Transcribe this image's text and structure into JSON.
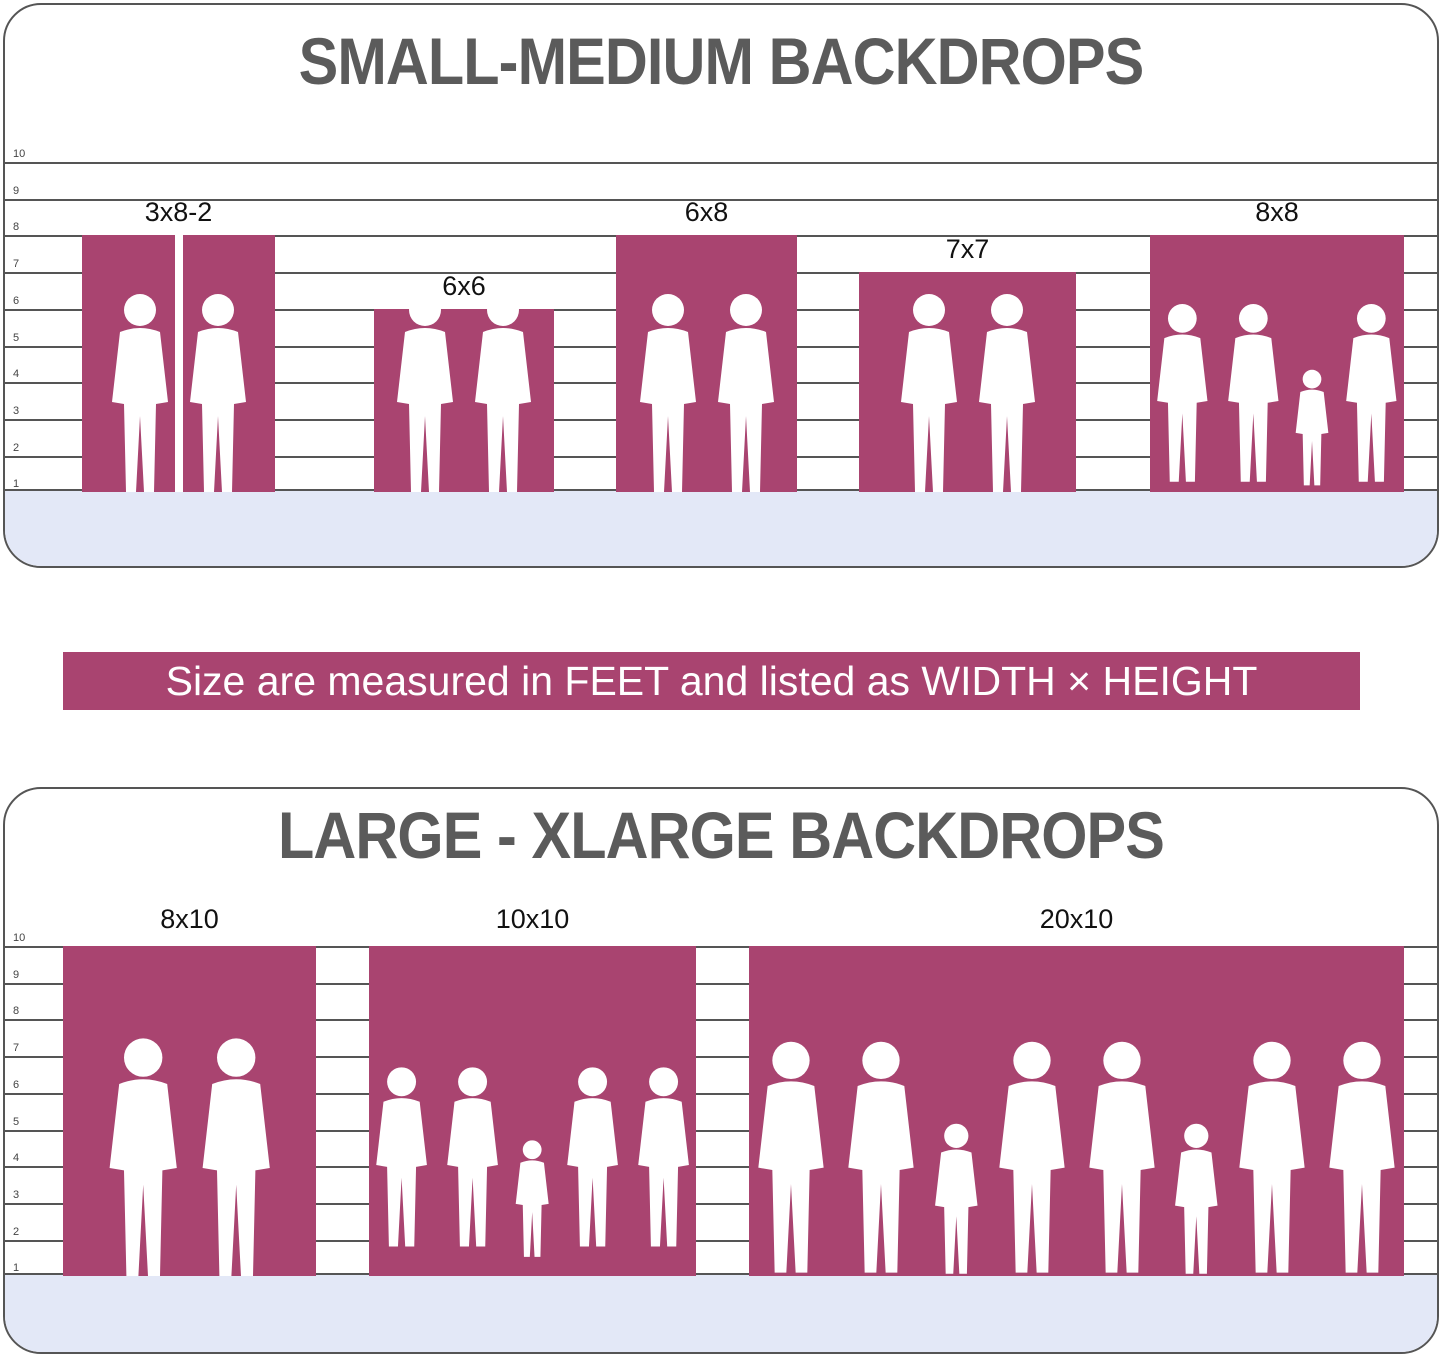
{
  "colors": {
    "backdrop": "#a94470",
    "floor": "#e3e8f7",
    "title": "#5b5b5b"
  },
  "small_medium": {
    "title": "SMALL-MEDIUM BACKDROPS",
    "scale": [
      "10",
      "9",
      "8",
      "7",
      "6",
      "5",
      "4",
      "3",
      "2",
      "1"
    ],
    "backdrops": [
      {
        "label": "3x8-2",
        "width_ft": 3,
        "height_ft": 8,
        "panels": 2,
        "figures": 2
      },
      {
        "label": "6x6",
        "width_ft": 6,
        "height_ft": 6,
        "panels": 1,
        "figures": 2
      },
      {
        "label": "6x8",
        "width_ft": 6,
        "height_ft": 8,
        "panels": 1,
        "figures": 2
      },
      {
        "label": "7x7",
        "width_ft": 7,
        "height_ft": 7,
        "panels": 1,
        "figures": 2
      },
      {
        "label": "8x8",
        "width_ft": 8,
        "height_ft": 8,
        "panels": 1,
        "figures": 4
      }
    ]
  },
  "banner": "Size are measured in FEET and listed as WIDTH × HEIGHT",
  "large_xlarge": {
    "title": "LARGE - XLARGE BACKDROPS",
    "scale": [
      "10",
      "9",
      "8",
      "7",
      "6",
      "5",
      "4",
      "3",
      "2",
      "1"
    ],
    "backdrops": [
      {
        "label": "8x10",
        "width_ft": 8,
        "height_ft": 10,
        "panels": 1,
        "figures": 2
      },
      {
        "label": "10x10",
        "width_ft": 10,
        "height_ft": 10,
        "panels": 1,
        "figures": 5
      },
      {
        "label": "20x10",
        "width_ft": 20,
        "height_ft": 10,
        "panels": 1,
        "figures": 8
      }
    ]
  }
}
